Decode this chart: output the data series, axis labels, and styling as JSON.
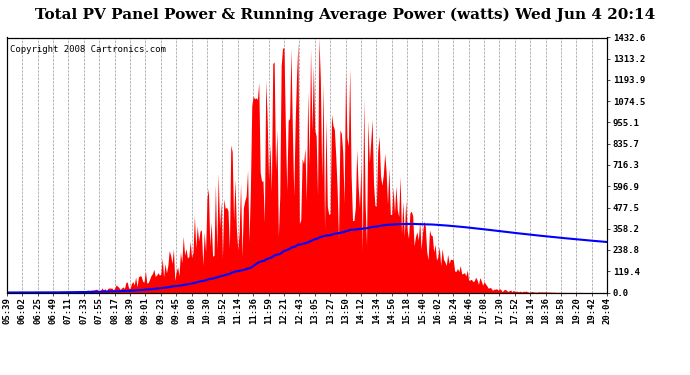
{
  "title": "Total PV Panel Power & Running Average Power (watts) Wed Jun 4 20:14",
  "copyright": "Copyright 2008 Cartronics.com",
  "ylabel_right_ticks": [
    0.0,
    119.4,
    238.8,
    358.2,
    477.5,
    596.9,
    716.3,
    835.7,
    955.1,
    1074.5,
    1193.9,
    1313.2,
    1432.6
  ],
  "ymax": 1432.6,
  "bar_color": "#FF0000",
  "avg_color": "#0000FF",
  "background_color": "#FFFFFF",
  "grid_color": "#999999",
  "x_labels": [
    "05:39",
    "06:02",
    "06:25",
    "06:49",
    "07:11",
    "07:33",
    "07:55",
    "08:17",
    "08:39",
    "09:01",
    "09:23",
    "09:45",
    "10:08",
    "10:30",
    "10:52",
    "11:14",
    "11:36",
    "11:59",
    "12:21",
    "12:43",
    "13:05",
    "13:27",
    "13:50",
    "14:12",
    "14:34",
    "14:56",
    "15:18",
    "15:40",
    "16:02",
    "16:24",
    "16:46",
    "17:08",
    "17:30",
    "17:52",
    "18:14",
    "18:36",
    "18:58",
    "19:20",
    "19:42",
    "20:04"
  ],
  "title_fontsize": 11,
  "copyright_fontsize": 6.5,
  "tick_fontsize": 6.5
}
